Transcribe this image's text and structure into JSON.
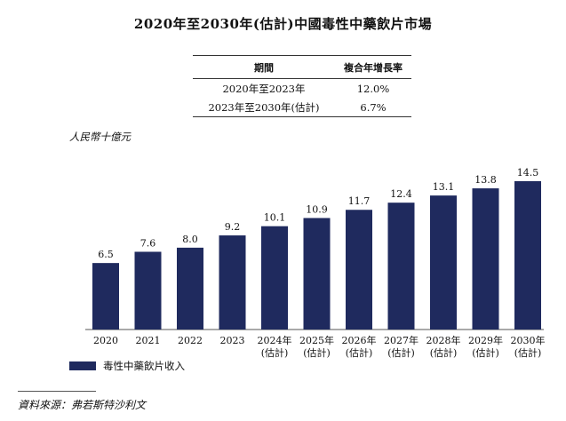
{
  "title": "2020年至2030年(估計)中國毒性中藥飲片市場",
  "cagr_table": {
    "headers": [
      "期間",
      "複合年增長率"
    ],
    "rows": [
      {
        "period": "2020年至2023年",
        "rate": "12.0%"
      },
      {
        "period": "2023年至2030年(估計)",
        "rate": "6.7%"
      }
    ]
  },
  "source": "資料來源：弗若斯特沙利文",
  "chart_data": {
    "type": "bar",
    "title": "2020年至2030年(估計)中國毒性中藥飲片市場",
    "ylabel": "人民幣十億元",
    "xlabel": "",
    "categories": [
      [
        "2020"
      ],
      [
        "2021"
      ],
      [
        "2022"
      ],
      [
        "2023"
      ],
      [
        "2024年",
        "(估計)"
      ],
      [
        "2025年",
        "(估計)"
      ],
      [
        "2026年",
        "(估計)"
      ],
      [
        "2027年",
        "(估計)"
      ],
      [
        "2028年",
        "(估計)"
      ],
      [
        "2029年",
        "(估計)"
      ],
      [
        "2030年",
        "(估計)"
      ]
    ],
    "series": [
      {
        "name": "毒性中藥飲片收入",
        "color": "#1f2a5e",
        "values": [
          6.5,
          7.6,
          8.0,
          9.2,
          10.1,
          10.9,
          11.7,
          12.4,
          13.1,
          13.8,
          14.5
        ]
      }
    ],
    "value_labels": [
      "6.5",
      "7.6",
      "8.0",
      "9.2",
      "10.1",
      "10.9",
      "11.7",
      "12.4",
      "13.1",
      "13.8",
      "14.5"
    ],
    "ylim": [
      0,
      14.5
    ],
    "grid": false,
    "legend": "bottom-left"
  }
}
